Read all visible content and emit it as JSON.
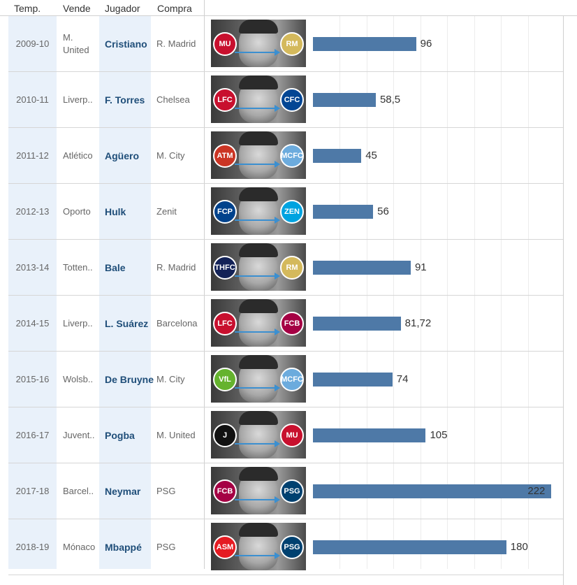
{
  "header": {
    "temp": "Temp.",
    "vende": "Vende",
    "jugador": "Jugador",
    "compra": "Compra"
  },
  "colors": {
    "bar": "#4e79a7",
    "player_text": "#1f4e79",
    "shade": "#e9f1fa"
  },
  "rows": [
    {
      "temp": "2009-10",
      "vende": "M. United",
      "jugador": "Cristiano",
      "compra": "R. Madrid",
      "from_crest": "man-united-crest-icon",
      "to_crest": "real-madrid-crest-icon",
      "from_color": "#c8102e",
      "to_color": "#d4b95c",
      "from_abbr": "MU",
      "to_abbr": "RM"
    },
    {
      "temp": "2010-11",
      "vende": "Liverp..",
      "jugador": "F. Torres",
      "compra": "Chelsea",
      "from_crest": "liverpool-crest-icon",
      "to_crest": "chelsea-crest-icon",
      "from_color": "#c8102e",
      "to_color": "#034694",
      "from_abbr": "LFC",
      "to_abbr": "CFC"
    },
    {
      "temp": "2011-12",
      "vende": "Atlético",
      "jugador": "Agüero",
      "compra": "M. City",
      "from_crest": "atletico-crest-icon",
      "to_crest": "man-city-crest-icon",
      "from_color": "#cb3524",
      "to_color": "#6cabdd",
      "from_abbr": "ATM",
      "to_abbr": "MCFC"
    },
    {
      "temp": "2012-13",
      "vende": "Oporto",
      "jugador": "Hulk",
      "compra": "Zenit",
      "from_crest": "porto-crest-icon",
      "to_crest": "zenit-crest-icon",
      "from_color": "#00428c",
      "to_color": "#00a3e0",
      "from_abbr": "FCP",
      "to_abbr": "ZEN"
    },
    {
      "temp": "2013-14",
      "vende": "Totten..",
      "jugador": "Bale",
      "compra": "R. Madrid",
      "from_crest": "tottenham-crest-icon",
      "to_crest": "real-madrid-crest-icon",
      "from_color": "#132257",
      "to_color": "#d4b95c",
      "from_abbr": "THFC",
      "to_abbr": "RM"
    },
    {
      "temp": "2014-15",
      "vende": "Liverp..",
      "jugador": "L. Suárez",
      "compra": "Barcelona",
      "from_crest": "liverpool-crest-icon",
      "to_crest": "barcelona-crest-icon",
      "from_color": "#c8102e",
      "to_color": "#a50044",
      "from_abbr": "LFC",
      "to_abbr": "FCB"
    },
    {
      "temp": "2015-16",
      "vende": "Wolsb..",
      "jugador": "De Bruyne",
      "compra": "M. City",
      "from_crest": "wolfsburg-crest-icon",
      "to_crest": "man-city-crest-icon",
      "from_color": "#65b32e",
      "to_color": "#6cabdd",
      "from_abbr": "VfL",
      "to_abbr": "MCFC"
    },
    {
      "temp": "2016-17",
      "vende": "Juvent..",
      "jugador": "Pogba",
      "compra": "M. United",
      "from_crest": "juventus-crest-icon",
      "to_crest": "man-united-crest-icon",
      "from_color": "#111111",
      "to_color": "#c8102e",
      "from_abbr": "J",
      "to_abbr": "MU"
    },
    {
      "temp": "2017-18",
      "vende": "Barcel..",
      "jugador": "Neymar",
      "compra": "PSG",
      "from_crest": "barcelona-crest-icon",
      "to_crest": "psg-crest-icon",
      "from_color": "#a50044",
      "to_color": "#004170",
      "from_abbr": "FCB",
      "to_abbr": "PSG"
    },
    {
      "temp": "2018-19",
      "vende": "Mónaco",
      "jugador": "Mbappé",
      "compra": "PSG",
      "from_crest": "monaco-crest-icon",
      "to_crest": "psg-crest-icon",
      "from_color": "#e51b22",
      "to_color": "#004170",
      "from_abbr": "ASM",
      "to_abbr": "PSG"
    }
  ],
  "chart_data": {
    "type": "bar",
    "orientation": "horizontal",
    "categories": [
      "2009-10",
      "2010-11",
      "2011-12",
      "2012-13",
      "2013-14",
      "2014-15",
      "2015-16",
      "2016-17",
      "2017-18",
      "2018-19"
    ],
    "values": [
      96,
      58.5,
      45,
      56,
      91,
      81.72,
      74,
      105,
      222,
      180
    ],
    "value_labels": [
      "96",
      "58,5",
      "45",
      "56",
      "91",
      "81,72",
      "74",
      "105",
      "222",
      "180"
    ],
    "xlim": [
      0,
      225
    ],
    "grid": true,
    "title": "",
    "xlabel": "",
    "ylabel": ""
  }
}
